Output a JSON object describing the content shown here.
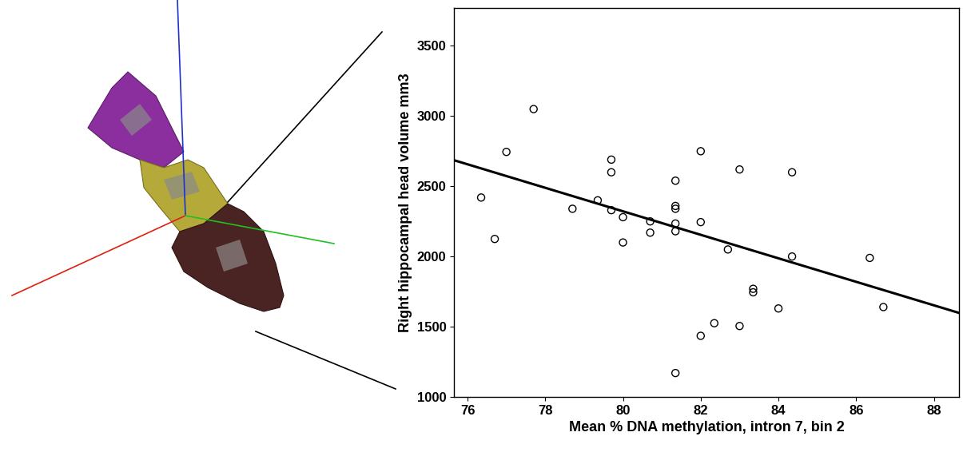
{
  "chart_data": {
    "type": "scatter",
    "x_label": "Mean % DNA methylation, intron 7, bin 2",
    "y_label": "Right hippocampal head volume mm3",
    "xlim": [
      75.65,
      88.65
    ],
    "ylim": [
      1000,
      3770
    ],
    "xticks": [
      76,
      78,
      80,
      82,
      84,
      86,
      88
    ],
    "yticks": [
      1000,
      1500,
      2000,
      2500,
      3000,
      3500
    ],
    "grid": false,
    "series": [
      {
        "type": "scatter",
        "marker": "o",
        "color": "#000000",
        "x": [
          76.35,
          76.7,
          77.0,
          77.7,
          78.7,
          79.35,
          79.7,
          79.7,
          79.7,
          80.0,
          80.0,
          80.7,
          80.7,
          81.35,
          81.35,
          81.35,
          81.35,
          81.35,
          81.35,
          82.0,
          82.0,
          82.0,
          82.35,
          82.7,
          83.0,
          83.0,
          83.35,
          83.35,
          84.0,
          84.35,
          84.35,
          86.35,
          86.7
        ],
        "values": [
          2420,
          2125,
          2745,
          3050,
          2340,
          2400,
          2690,
          2600,
          2330,
          2280,
          2100,
          2250,
          2170,
          2540,
          2360,
          2340,
          2235,
          2180,
          1170,
          2750,
          2245,
          1435,
          1525,
          2050,
          2620,
          1505,
          1770,
          1745,
          1630,
          2600,
          2000,
          1990,
          1640
        ]
      },
      {
        "type": "line",
        "line_style": "solid",
        "color": "#000000",
        "x": [
          75.65,
          88.65
        ],
        "values": [
          2686,
          1598
        ]
      }
    ]
  }
}
